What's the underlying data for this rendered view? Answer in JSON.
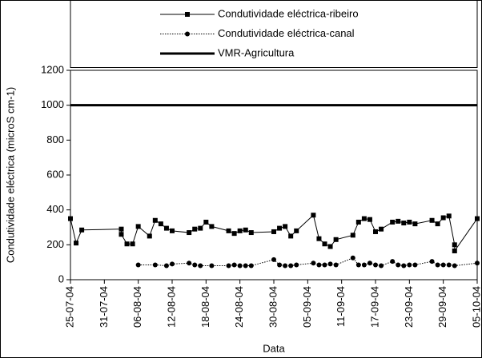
{
  "chart_data": {
    "type": "line",
    "xlabel": "Data",
    "ylabel": "Condutividade eléctrica (microS cm-1)",
    "xlim": [
      "2004-07-25",
      "2004-10-05"
    ],
    "ylim": [
      0,
      1200
    ],
    "yticks": [
      0,
      200,
      400,
      600,
      800,
      1000,
      1200
    ],
    "xticks": [
      {
        "value": "2004-07-25",
        "label": "25-07-04"
      },
      {
        "value": "2004-07-31",
        "label": "31-07-04"
      },
      {
        "value": "2004-08-06",
        "label": "06-08-04"
      },
      {
        "value": "2004-08-12",
        "label": "12-08-04"
      },
      {
        "value": "2004-08-18",
        "label": "18-08-04"
      },
      {
        "value": "2004-08-24",
        "label": "24-08-04"
      },
      {
        "value": "2004-08-30",
        "label": "30-08-04"
      },
      {
        "value": "2004-09-05",
        "label": "05-09-04"
      },
      {
        "value": "2004-09-11",
        "label": "11-09-04"
      },
      {
        "value": "2004-09-17",
        "label": "17-09-04"
      },
      {
        "value": "2004-09-23",
        "label": "23-09-04"
      },
      {
        "value": "2004-09-29",
        "label": "29-09-04"
      },
      {
        "value": "2004-10-05",
        "label": "05-10-04"
      }
    ],
    "series": [
      {
        "name": "Condutividade eléctrica-ribeiro",
        "color": "#000000",
        "marker": "square",
        "dash": "solid",
        "linewidth": 1,
        "x": [
          "2004-07-25",
          "2004-07-26",
          "2004-07-27",
          "2004-08-03",
          "2004-08-03",
          "2004-08-04",
          "2004-08-05",
          "2004-08-06",
          "2004-08-08",
          "2004-08-09",
          "2004-08-10",
          "2004-08-11",
          "2004-08-12",
          "2004-08-15",
          "2004-08-16",
          "2004-08-17",
          "2004-08-18",
          "2004-08-19",
          "2004-08-22",
          "2004-08-23",
          "2004-08-24",
          "2004-08-25",
          "2004-08-26",
          "2004-08-30",
          "2004-08-31",
          "2004-09-01",
          "2004-09-02",
          "2004-09-03",
          "2004-09-06",
          "2004-09-07",
          "2004-09-08",
          "2004-09-09",
          "2004-09-10",
          "2004-09-13",
          "2004-09-14",
          "2004-09-15",
          "2004-09-16",
          "2004-09-17",
          "2004-09-18",
          "2004-09-20",
          "2004-09-21",
          "2004-09-22",
          "2004-09-23",
          "2004-09-24",
          "2004-09-27",
          "2004-09-28",
          "2004-09-29",
          "2004-09-30",
          "2004-10-01",
          "2004-10-01",
          "2004-10-05"
        ],
        "values": [
          350,
          210,
          285,
          290,
          260,
          205,
          205,
          305,
          250,
          340,
          320,
          295,
          280,
          270,
          290,
          295,
          330,
          305,
          280,
          265,
          280,
          285,
          270,
          275,
          295,
          305,
          250,
          280,
          370,
          235,
          205,
          190,
          230,
          255,
          330,
          350,
          345,
          275,
          290,
          330,
          335,
          325,
          330,
          320,
          340,
          320,
          355,
          365,
          200,
          165,
          350
        ]
      },
      {
        "name": "Condutividade eléctrica-canal",
        "color": "#000000",
        "marker": "circle",
        "dash": "dotted",
        "linewidth": 1,
        "x": [
          "2004-08-06",
          "2004-08-09",
          "2004-08-11",
          "2004-08-12",
          "2004-08-15",
          "2004-08-16",
          "2004-08-17",
          "2004-08-19",
          "2004-08-22",
          "2004-08-23",
          "2004-08-24",
          "2004-08-25",
          "2004-08-26",
          "2004-08-30",
          "2004-08-31",
          "2004-09-01",
          "2004-09-02",
          "2004-09-03",
          "2004-09-06",
          "2004-09-07",
          "2004-09-08",
          "2004-09-09",
          "2004-09-10",
          "2004-09-13",
          "2004-09-14",
          "2004-09-15",
          "2004-09-16",
          "2004-09-17",
          "2004-09-18",
          "2004-09-20",
          "2004-09-21",
          "2004-09-22",
          "2004-09-23",
          "2004-09-24",
          "2004-09-27",
          "2004-09-28",
          "2004-09-29",
          "2004-09-30",
          "2004-10-01",
          "2004-10-05"
        ],
        "values": [
          85,
          85,
          80,
          90,
          95,
          85,
          80,
          80,
          80,
          85,
          80,
          80,
          80,
          115,
          85,
          80,
          80,
          85,
          95,
          85,
          85,
          90,
          85,
          125,
          85,
          85,
          95,
          85,
          80,
          105,
          85,
          80,
          85,
          85,
          105,
          85,
          85,
          85,
          80,
          95
        ]
      },
      {
        "name": "VMR-Agricultura",
        "color": "#000000",
        "marker": "none",
        "dash": "solid",
        "linewidth": 3,
        "x": [
          "2004-07-25",
          "2004-10-05"
        ],
        "values": [
          1000,
          1000
        ]
      }
    ]
  }
}
